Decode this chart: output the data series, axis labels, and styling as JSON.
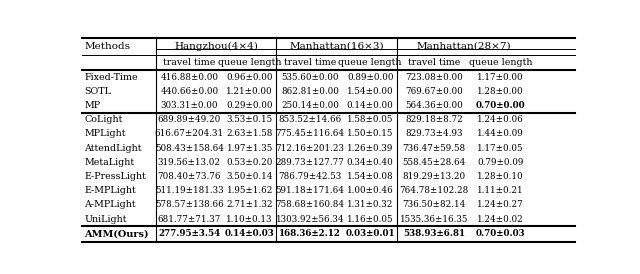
{
  "col_groups": [
    {
      "label": "Hangzhou(4×4)"
    },
    {
      "label": "Manhattan(16×3)"
    },
    {
      "label": "Manhattan(28×7)"
    }
  ],
  "sub_headers": [
    "travel time",
    "queue length",
    "travel time",
    "queue length",
    "travel time",
    "queue length"
  ],
  "method_col": "Methods",
  "rows_group1": [
    [
      "Fixed-Time",
      "416.88±0.00",
      "0.96±0.00",
      "535.60±0.00",
      "0.89±0.00",
      "723.08±0.00",
      "1.17±0.00"
    ],
    [
      "SOTL",
      "440.66±0.00",
      "1.21±0.00",
      "862.81±0.00",
      "1.54±0.00",
      "769.67±0.00",
      "1.28±0.00"
    ],
    [
      "MP",
      "303.31±0.00",
      "0.29±0.00",
      "250.14±0.00",
      "0.14±0.00",
      "564.36±0.00",
      "0.70±0.00"
    ]
  ],
  "rows_group1_bold": [
    [
      false,
      false,
      false,
      false,
      false,
      false
    ],
    [
      false,
      false,
      false,
      false,
      false,
      false
    ],
    [
      false,
      false,
      false,
      false,
      false,
      true
    ]
  ],
  "rows_group2": [
    [
      "CoLight",
      "689.89±49.20",
      "3.53±0.15",
      "853.52±14.66",
      "1.58±0.05",
      "829.18±8.72",
      "1.24±0.06"
    ],
    [
      "MPLight",
      "616.67±204.31",
      "2.63±1.58",
      "775.45±116.64",
      "1.50±0.15",
      "829.73±4.93",
      "1.44±0.09"
    ],
    [
      "AttendLight",
      "508.43±158.64",
      "1.97±1.35",
      "712.16±201.23",
      "1.26±0.39",
      "736.47±59.58",
      "1.17±0.05"
    ],
    [
      "MetaLight",
      "319.56±13.02",
      "0.53±0.20",
      "289.73±127.77",
      "0.34±0.40",
      "558.45±28.64",
      "0.79±0.09"
    ],
    [
      "E-PressLight",
      "708.40±73.76",
      "3.50±0.14",
      "786.79±42.53",
      "1.54±0.08",
      "819.29±13.20",
      "1.28±0.10"
    ],
    [
      "E-MPLight",
      "511.19±181.33",
      "1.95±1.62",
      "591.18±171.64",
      "1.00±0.46",
      "764.78±102.28",
      "1.11±0.21"
    ],
    [
      "A-MPLight",
      "578.57±138.66",
      "2.71±1.32",
      "758.68±160.84",
      "1.31±0.32",
      "736.50±82.14",
      "1.24±0.27"
    ],
    [
      "UniLight",
      "681.77±71.37",
      "1.10±0.13",
      "1303.92±56.34",
      "1.16±0.05",
      "1535.36±16.35",
      "1.24±0.02"
    ]
  ],
  "row_amm_method": "AMM(Ours)",
  "row_amm_bold": [
    "277.95",
    "0.14",
    "168.36",
    "0.03",
    "538.93",
    "0.70"
  ],
  "row_amm_rest": [
    "±3.54",
    "±0.03",
    "±2.12",
    "±0.01",
    "±6.81",
    "±0.03"
  ],
  "figsize": [
    6.4,
    2.74
  ],
  "dpi": 100,
  "bg_color": "#ffffff"
}
